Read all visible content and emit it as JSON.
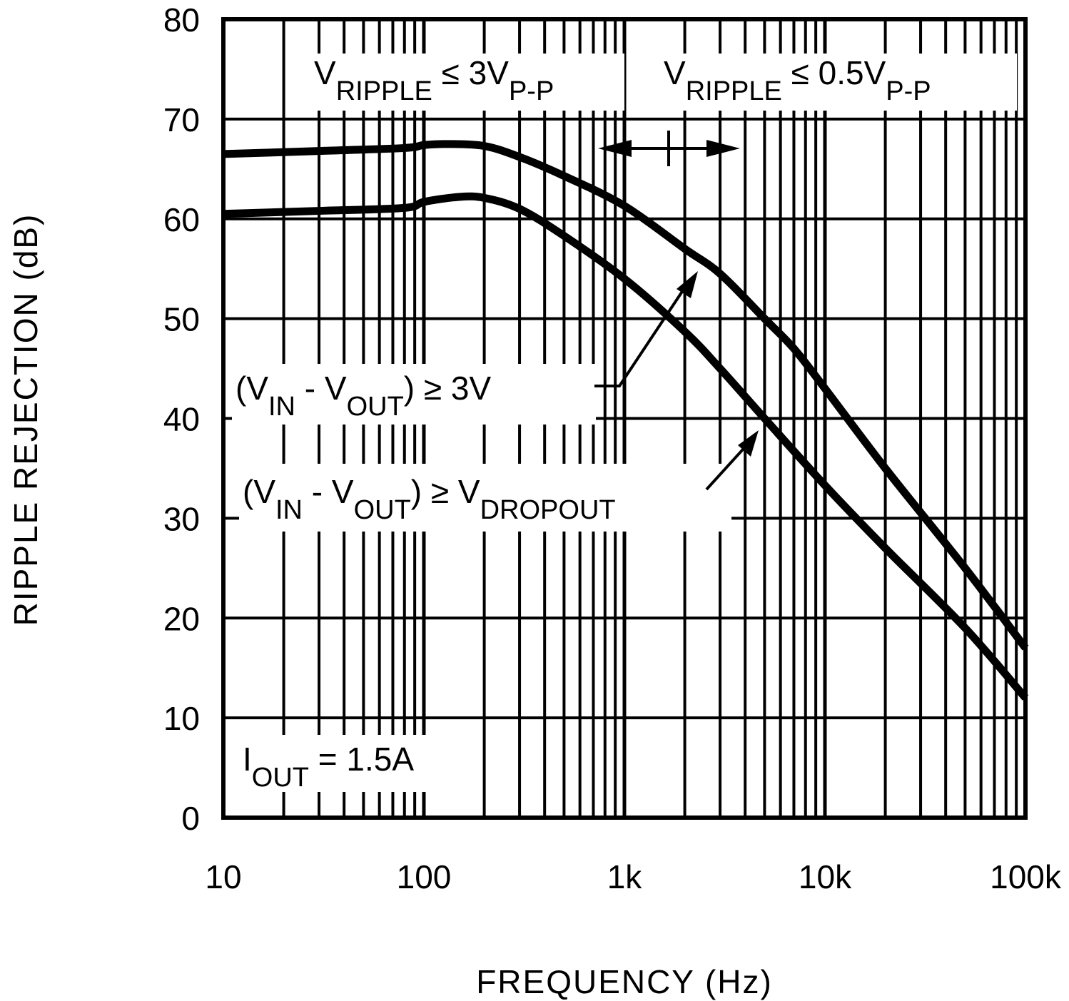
{
  "chart_data": {
    "type": "line",
    "title": "",
    "xlabel": "FREQUENCY (Hz)",
    "ylabel": "RIPPLE REJECTION (dB)",
    "xscale": "log",
    "xlim": [
      10,
      100000
    ],
    "ylim": [
      0,
      80
    ],
    "grid": true,
    "x_ticks": [
      10,
      100,
      1000,
      10000,
      100000
    ],
    "x_tick_labels": [
      "10",
      "100",
      "1k",
      "10k",
      "100k"
    ],
    "y_ticks": [
      0,
      10,
      20,
      30,
      40,
      50,
      60,
      70,
      80
    ],
    "y_tick_labels": [
      "0",
      "10",
      "20",
      "30",
      "40",
      "50",
      "60",
      "70",
      "80"
    ],
    "series": [
      {
        "name": "(VIN - VOUT) ≥ 3V",
        "x": [
          10,
          30,
          80,
          100,
          130,
          200,
          300,
          500,
          1000,
          2000,
          3000,
          5000,
          7000,
          10000,
          20000,
          50000,
          100000
        ],
        "y": [
          66.5,
          66.8,
          67.1,
          67.4,
          67.5,
          67.3,
          66.2,
          64.3,
          61.3,
          57,
          54.5,
          50,
          47,
          43,
          35,
          25,
          17
        ]
      },
      {
        "name": "(VIN - VOUT) ≥ VDROPOUT",
        "x": [
          10,
          30,
          80,
          100,
          150,
          200,
          300,
          500,
          1000,
          2000,
          3000,
          5000,
          10000,
          20000,
          50000,
          100000
        ],
        "y": [
          60.5,
          60.8,
          61.1,
          61.7,
          62.2,
          62.1,
          61,
          58.3,
          54,
          48.7,
          45,
          40,
          33.3,
          27,
          19,
          12
        ]
      }
    ],
    "annotations": {
      "ripple_low": {
        "main": "V",
        "sub": "RIPPLE",
        "rest": " ≤ 3V",
        "sub2": "P-P"
      },
      "ripple_high": {
        "main": "V",
        "sub": "RIPPLE",
        "rest": " ≤ 0.5V",
        "sub2": "P-P"
      },
      "label_3v": {
        "p1": "(V",
        "s1": "IN",
        "p2": " - V",
        "s2": "OUT",
        "p3": ") ≥ 3V"
      },
      "label_dropout": {
        "p1": "(V",
        "s1": "IN",
        "p2": " - V",
        "s2": "OUT",
        "p3": ") ≥ V",
        "s3": "DROPOUT"
      },
      "condition": {
        "p1": "I",
        "s1": "OUT",
        "p2": " = 1.5A"
      }
    }
  }
}
